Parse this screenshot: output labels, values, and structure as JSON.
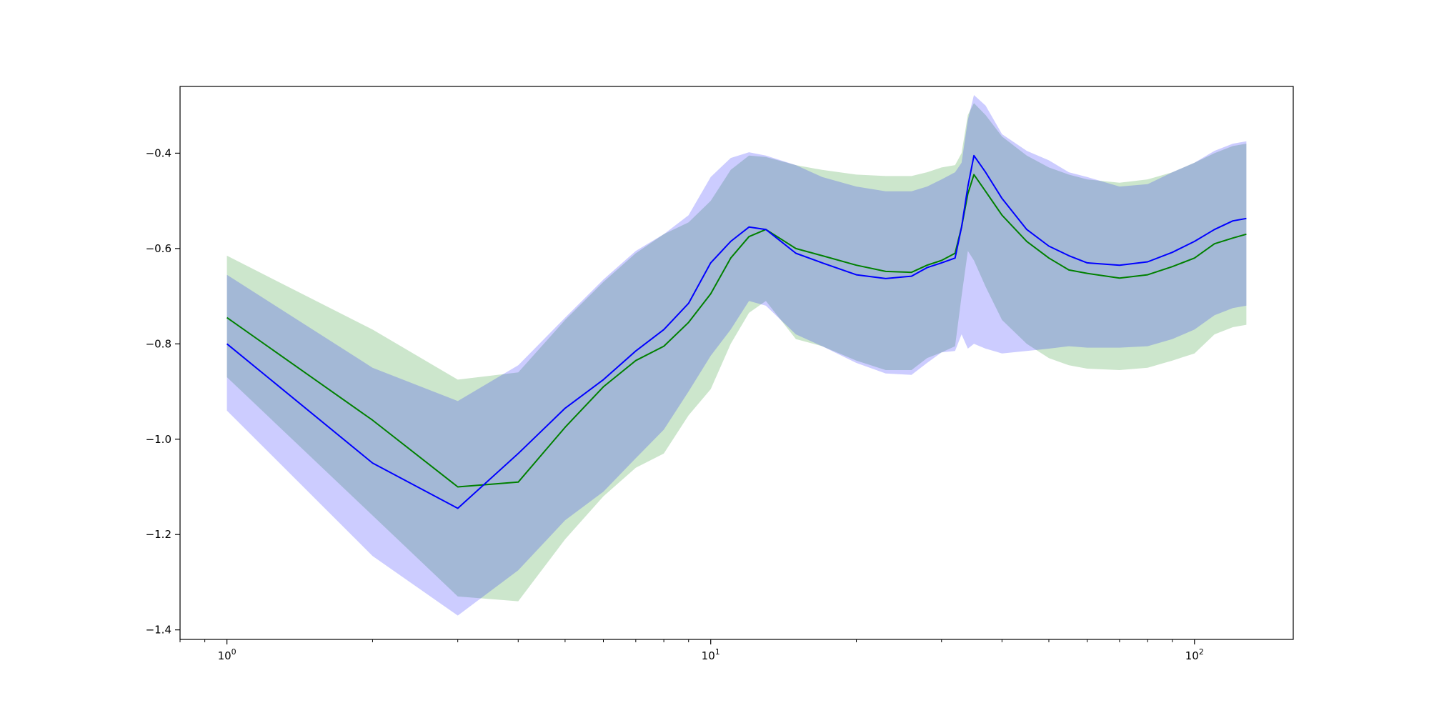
{
  "chart_data": {
    "type": "line",
    "title": "",
    "xlabel": "",
    "ylabel": "",
    "xscale": "log",
    "xlim": [
      0.8,
      160
    ],
    "ylim": [
      -1.42,
      -0.26
    ],
    "grid": false,
    "x_ticks": [
      {
        "value": 1,
        "base": "10",
        "exp": "0"
      },
      {
        "value": 10,
        "base": "10",
        "exp": "1"
      },
      {
        "value": 100,
        "base": "10",
        "exp": "2"
      }
    ],
    "y_ticks": [
      {
        "value": -0.4,
        "label": "−0.4"
      },
      {
        "value": -0.6,
        "label": "−0.6"
      },
      {
        "value": -0.8,
        "label": "−0.8"
      },
      {
        "value": -1.0,
        "label": "−1.0"
      },
      {
        "value": -1.2,
        "label": "−1.2"
      },
      {
        "value": -1.4,
        "label": "−1.4"
      }
    ],
    "series": [
      {
        "color": "#008000",
        "band_color": "#008000",
        "band_opacity": 0.2,
        "x": [
          1,
          2,
          3,
          4,
          5,
          6,
          7,
          8,
          9,
          10,
          11,
          12,
          13,
          15,
          17,
          20,
          23,
          26,
          28,
          30,
          32,
          33,
          34,
          35,
          37,
          40,
          45,
          50,
          55,
          60,
          70,
          80,
          90,
          100,
          110,
          120,
          128
        ],
        "y": [
          -0.745,
          -0.96,
          -1.1,
          -1.09,
          -0.975,
          -0.89,
          -0.835,
          -0.805,
          -0.755,
          -0.695,
          -0.62,
          -0.575,
          -0.56,
          -0.6,
          -0.615,
          -0.635,
          -0.648,
          -0.65,
          -0.635,
          -0.625,
          -0.61,
          -0.555,
          -0.485,
          -0.445,
          -0.48,
          -0.53,
          -0.585,
          -0.62,
          -0.645,
          -0.652,
          -0.662,
          -0.655,
          -0.638,
          -0.62,
          -0.59,
          -0.578,
          -0.57
        ],
        "upper": [
          -0.615,
          -0.77,
          -0.875,
          -0.86,
          -0.75,
          -0.67,
          -0.61,
          -0.57,
          -0.545,
          -0.5,
          -0.435,
          -0.405,
          -0.408,
          -0.425,
          -0.435,
          -0.445,
          -0.448,
          -0.448,
          -0.44,
          -0.43,
          -0.425,
          -0.4,
          -0.32,
          -0.295,
          -0.32,
          -0.365,
          -0.405,
          -0.43,
          -0.445,
          -0.455,
          -0.462,
          -0.455,
          -0.44,
          -0.42,
          -0.4,
          -0.385,
          -0.38
        ],
        "lower": [
          -0.87,
          -1.16,
          -1.33,
          -1.34,
          -1.21,
          -1.12,
          -1.06,
          -1.03,
          -0.95,
          -0.895,
          -0.8,
          -0.735,
          -0.71,
          -0.79,
          -0.805,
          -0.835,
          -0.855,
          -0.855,
          -0.83,
          -0.818,
          -0.805,
          -0.7,
          -0.605,
          -0.625,
          -0.68,
          -0.75,
          -0.8,
          -0.83,
          -0.845,
          -0.852,
          -0.855,
          -0.85,
          -0.835,
          -0.82,
          -0.78,
          -0.765,
          -0.76
        ]
      },
      {
        "color": "#0000ff",
        "band_color": "#0000ff",
        "band_opacity": 0.2,
        "x": [
          1,
          2,
          3,
          4,
          5,
          6,
          7,
          8,
          9,
          10,
          11,
          12,
          13,
          15,
          17,
          20,
          23,
          26,
          28,
          30,
          32,
          33,
          34,
          35,
          37,
          40,
          45,
          50,
          55,
          60,
          70,
          80,
          90,
          100,
          110,
          120,
          128
        ],
        "y": [
          -0.8,
          -1.05,
          -1.145,
          -1.03,
          -0.935,
          -0.875,
          -0.815,
          -0.77,
          -0.715,
          -0.63,
          -0.585,
          -0.555,
          -0.56,
          -0.61,
          -0.63,
          -0.655,
          -0.663,
          -0.658,
          -0.64,
          -0.63,
          -0.62,
          -0.555,
          -0.47,
          -0.405,
          -0.44,
          -0.495,
          -0.56,
          -0.595,
          -0.615,
          -0.63,
          -0.635,
          -0.628,
          -0.608,
          -0.585,
          -0.56,
          -0.542,
          -0.537
        ],
        "upper": [
          -0.655,
          -0.85,
          -0.92,
          -0.845,
          -0.745,
          -0.665,
          -0.605,
          -0.57,
          -0.53,
          -0.45,
          -0.41,
          -0.398,
          -0.405,
          -0.425,
          -0.45,
          -0.47,
          -0.48,
          -0.48,
          -0.47,
          -0.455,
          -0.44,
          -0.42,
          -0.33,
          -0.278,
          -0.3,
          -0.36,
          -0.395,
          -0.415,
          -0.44,
          -0.45,
          -0.47,
          -0.465,
          -0.44,
          -0.42,
          -0.395,
          -0.38,
          -0.375
        ],
        "lower": [
          -0.94,
          -1.245,
          -1.37,
          -1.275,
          -1.17,
          -1.11,
          -1.04,
          -0.98,
          -0.9,
          -0.825,
          -0.77,
          -0.71,
          -0.72,
          -0.78,
          -0.805,
          -0.84,
          -0.862,
          -0.865,
          -0.84,
          -0.818,
          -0.815,
          -0.78,
          -0.81,
          -0.8,
          -0.81,
          -0.82,
          -0.815,
          -0.81,
          -0.805,
          -0.808,
          -0.808,
          -0.805,
          -0.79,
          -0.77,
          -0.74,
          -0.725,
          -0.72
        ]
      }
    ]
  }
}
